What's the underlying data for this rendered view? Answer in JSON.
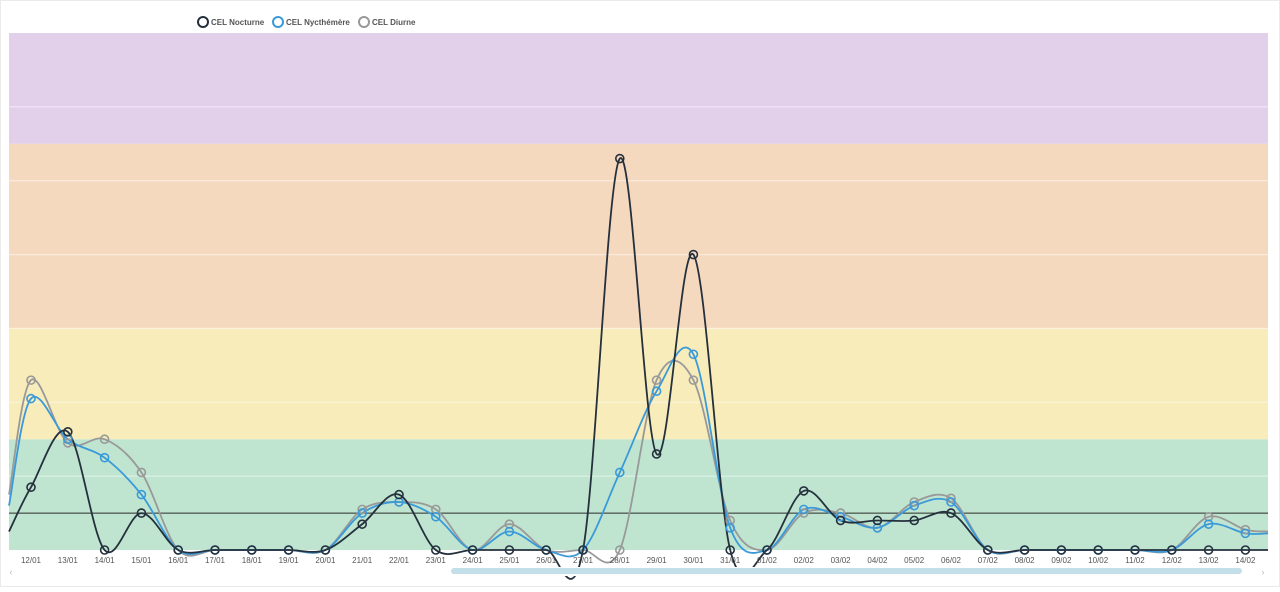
{
  "chart_data": {
    "type": "line",
    "categories": [
      "12/01",
      "13/01",
      "14/01",
      "15/01",
      "16/01",
      "17/01",
      "18/01",
      "19/01",
      "20/01",
      "21/01",
      "22/01",
      "23/01",
      "24/01",
      "25/01",
      "26/01",
      "27/01",
      "28/01",
      "29/01",
      "30/01",
      "31/01",
      "01/02",
      "02/02",
      "03/02",
      "04/02",
      "05/02",
      "06/02",
      "07/02",
      "08/02",
      "09/02",
      "10/02",
      "11/02",
      "12/02",
      "13/02",
      "14/02"
    ],
    "ylim": [
      0,
      14
    ],
    "threshold": 1,
    "bands": [
      {
        "from": 0,
        "to": 3,
        "color": "#bfe5d0"
      },
      {
        "from": 3,
        "to": 6,
        "color": "#f7ecba"
      },
      {
        "from": 6,
        "to": 11,
        "color": "#f5d9bf"
      },
      {
        "from": 11,
        "to": 14,
        "color": "#e2d0ea"
      }
    ],
    "series": [
      {
        "name": "CEL Diurne",
        "color": "#999999",
        "values": [
          4.6,
          2.9,
          3.0,
          2.1,
          0,
          0,
          0,
          0,
          0,
          1.1,
          1.3,
          1.1,
          0,
          0.7,
          0,
          0,
          0,
          4.6,
          4.6,
          0.8,
          0,
          1.0,
          1.0,
          0.6,
          1.3,
          1.4,
          0,
          0,
          0,
          0,
          0,
          0,
          0.9,
          0.55
        ],
        "edge_left": 1.5,
        "edge_right": 0.5
      },
      {
        "name": "CEL Nycthémère",
        "color": "#3a9ad9",
        "values": [
          4.1,
          3.0,
          2.5,
          1.5,
          0,
          0,
          0,
          0,
          0,
          1.0,
          1.3,
          0.9,
          0,
          0.5,
          0,
          0,
          2.1,
          4.3,
          5.3,
          0.6,
          0,
          1.1,
          0.9,
          0.6,
          1.2,
          1.3,
          0,
          0,
          0,
          0,
          0,
          0,
          0.7,
          0.45
        ],
        "edge_left": 1.2,
        "edge_right": 0.45
      },
      {
        "name": "CEL Nocturne",
        "color": "#25303d",
        "values": [
          1.7,
          3.2,
          0,
          1.0,
          0,
          0,
          0,
          0,
          0,
          0.7,
          1.5,
          0,
          0,
          0,
          0,
          0,
          10.6,
          2.6,
          8.0,
          0,
          0,
          1.6,
          0.8,
          0.8,
          0.8,
          1.0,
          0,
          0,
          0,
          0,
          0,
          0,
          0,
          0
        ],
        "edge_left": 0.5,
        "edge_right": 0
      }
    ],
    "legend": {
      "position": "top-left",
      "order": [
        "CEL Nocturne",
        "CEL Nycthémère",
        "CEL Diurne"
      ]
    },
    "grid": true
  }
}
